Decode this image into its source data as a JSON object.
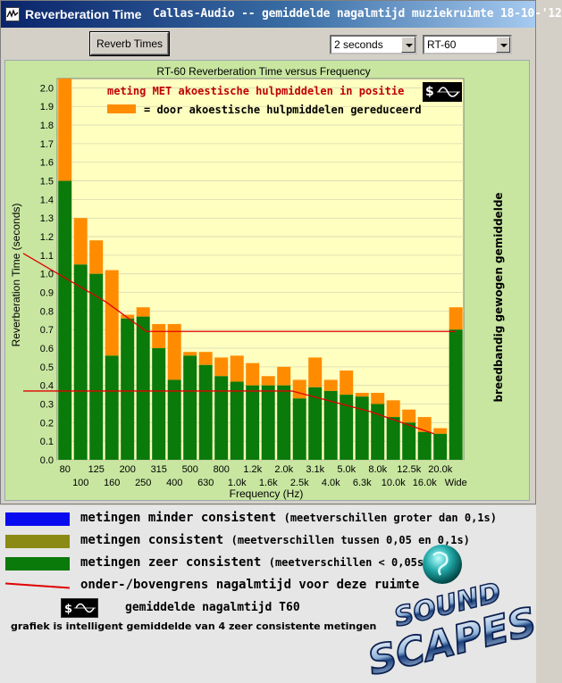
{
  "window": {
    "app_title": "Reverberation Time",
    "subtitle": "Callas-Audio -- gemiddelde nagalmtijd muziekruimte 18-10-'12"
  },
  "toolbar": {
    "reverb_button_label": "Reverb Times",
    "time_select_value": "2 seconds",
    "mode_select_value": "RT-60"
  },
  "colors": {
    "plot_bg": "#ffffc0",
    "panel_bg": "#c8e6a0",
    "consistent_green": "#0a7a0a",
    "reduced_orange": "#ff8c00",
    "limit_red": "#e00000",
    "less_consistent_blue": "#0a0af0",
    "consistent_olive": "#8a8a14"
  },
  "chart_data": {
    "type": "bar",
    "title": "RT-60 Reverberation Time versus Frequency",
    "xlabel": "Frequency (Hz)",
    "ylabel": "Reverberation Time (seconds)",
    "right_label": "breedbandig gewogen gemiddelde",
    "ylim": [
      0,
      2.05
    ],
    "yticks": [
      "0.0",
      "0.1",
      "0.2",
      "0.3",
      "0.4",
      "0.5",
      "0.6",
      "0.7",
      "0.8",
      "0.9",
      "1.0",
      "1.1",
      "1.2",
      "1.3",
      "1.4",
      "1.5",
      "1.6",
      "1.7",
      "1.8",
      "1.9",
      "2.0"
    ],
    "grid": true,
    "categories": [
      "80",
      "100",
      "125",
      "160",
      "200",
      "250",
      "315",
      "400",
      "500",
      "630",
      "800",
      "1.0k",
      "1.2k",
      "1.6k",
      "2.0k",
      "2.5k",
      "3.1k",
      "4.0k",
      "5.0k",
      "6.3k",
      "8.0k",
      "10.0k",
      "12.5k",
      "16.0k",
      "20.0k",
      "Wide"
    ],
    "tick_labels_row1": [
      "80",
      "125",
      "200",
      "315",
      "500",
      "800",
      "1.2k",
      "2.0k",
      "3.1k",
      "5.0k",
      "8.0k",
      "12.5k",
      "20.0k"
    ],
    "tick_labels_row2": [
      "100",
      "160",
      "250",
      "400",
      "630",
      "1.0k",
      "1.6k",
      "2.5k",
      "4.0k",
      "6.3k",
      "10.0k",
      "16.0k",
      "Wide"
    ],
    "series": [
      {
        "values": [
          1.5,
          1.05,
          1.0,
          0.56,
          0.76,
          0.77,
          0.6,
          0.43,
          0.56,
          0.51,
          0.45,
          0.42,
          0.4,
          0.4,
          0.4,
          0.33,
          0.39,
          0.37,
          0.35,
          0.34,
          0.3,
          0.23,
          0.2,
          0.15,
          0.14,
          0.7
        ]
      },
      {
        "values": [
          0.55,
          0.25,
          0.18,
          0.46,
          0.02,
          0.05,
          0.13,
          0.3,
          0.02,
          0.07,
          0.1,
          0.14,
          0.12,
          0.05,
          0.1,
          0.1,
          0.16,
          0.06,
          0.13,
          0.02,
          0.06,
          0.09,
          0.07,
          0.08,
          0.03,
          0.12
        ]
      }
    ],
    "legend": {
      "heading": "meting MET akoestische hulpmiddelen in positie",
      "item": "= door akoestische hulpmiddelen gereduceerd"
    },
    "limit_lines": {
      "upper_start": 1.11,
      "upper_end_value": 0.69,
      "lower_start": 0.37,
      "lower_end_value": 0.14
    }
  },
  "legend_panel": {
    "items": [
      {
        "label": "metingen minder consistent",
        "note": "(meetverschillen groter dan 0,1s)",
        "color": "#0a0af0"
      },
      {
        "label": "metingen consistent",
        "note": "(meetverschillen tussen 0,05 en 0,1s)",
        "color": "#8a8a14"
      },
      {
        "label": "metingen zeer consistent",
        "note": "(meetverschillen < 0,05s)",
        "color": "#0a7a0a"
      },
      {
        "label": "onder-/bovengrens nagalmtijd voor deze ruimte",
        "note": "",
        "color": "#e00000"
      }
    ],
    "t60_label": "gemiddelde nagalmtijd T60",
    "footnote": "grafiek is intelligent gemiddelde van 4 zeer consistente metingen"
  },
  "logo": {
    "top_text": "SOUND",
    "bottom_text": "SCAPES"
  }
}
